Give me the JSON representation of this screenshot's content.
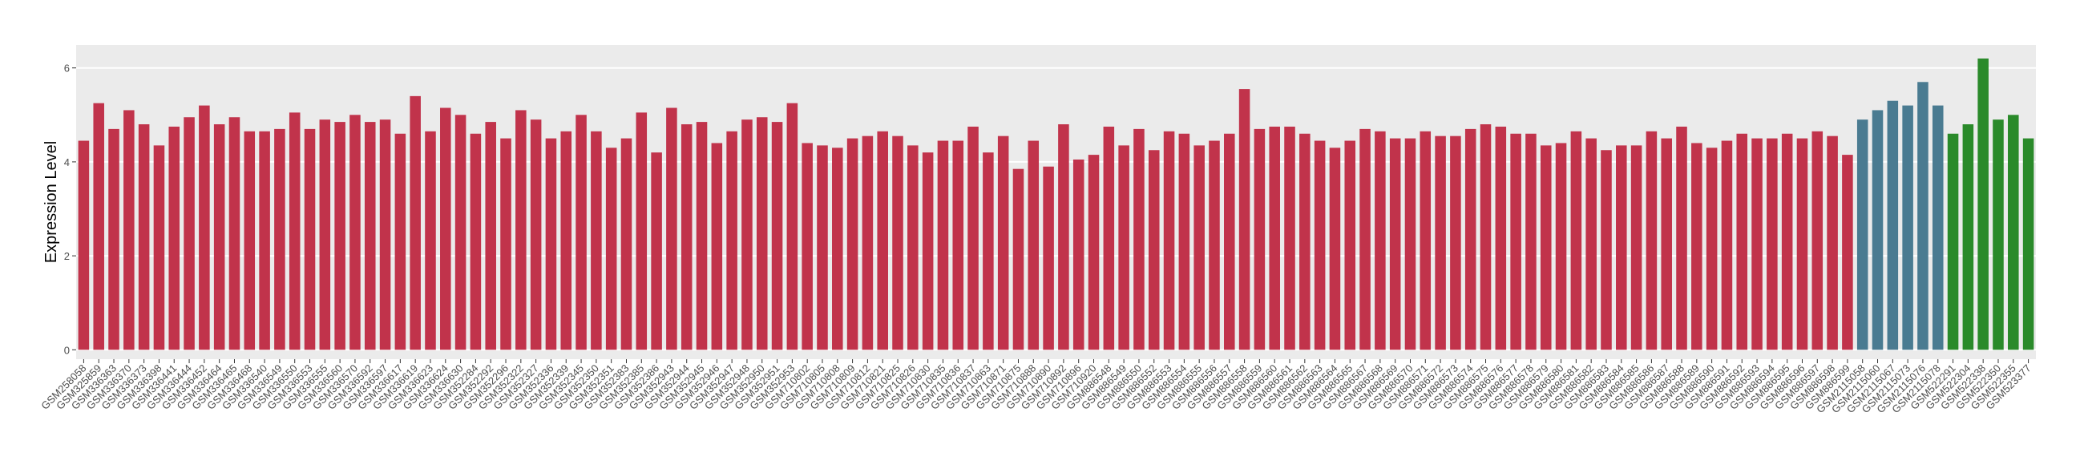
{
  "chart_data": {
    "type": "bar",
    "y_label": "Expression Level",
    "ylim": [
      -0.2,
      6.49
    ],
    "yticks": [
      0,
      2,
      4,
      6
    ],
    "grid": true,
    "series": [
      {
        "color": "#c1334b",
        "categories": [
          "GSM258058",
          "GSM325859",
          "GSM336363",
          "GSM336370",
          "GSM336373",
          "GSM336398",
          "GSM336441",
          "GSM336444",
          "GSM336452",
          "GSM336464",
          "GSM336465",
          "GSM336468",
          "GSM336540",
          "GSM336549",
          "GSM336550",
          "GSM336553",
          "GSM336555",
          "GSM336560",
          "GSM336570",
          "GSM336592",
          "GSM336597",
          "GSM336617",
          "GSM336619",
          "GSM336623",
          "GSM336624",
          "GSM336630",
          "GSM352284",
          "GSM352292",
          "GSM352296",
          "GSM352322",
          "GSM352327",
          "GSM352336",
          "GSM352339",
          "GSM352345",
          "GSM352350",
          "GSM352351",
          "GSM352383",
          "GSM352385",
          "GSM352386",
          "GSM352943",
          "GSM352944",
          "GSM352945",
          "GSM352946",
          "GSM352947",
          "GSM352948",
          "GSM352950",
          "GSM352951",
          "GSM352953",
          "GSM710802",
          "GSM710805",
          "GSM710808",
          "GSM710809",
          "GSM710812",
          "GSM710821",
          "GSM710825",
          "GSM710826",
          "GSM710830",
          "GSM710835",
          "GSM710836",
          "GSM710837",
          "GSM710863",
          "GSM710871",
          "GSM710875",
          "GSM710888",
          "GSM710890",
          "GSM710892",
          "GSM710896",
          "GSM710920",
          "GSM886548",
          "GSM886549",
          "GSM886550",
          "GSM886552",
          "GSM886553",
          "GSM886554",
          "GSM886555",
          "GSM886556",
          "GSM886557",
          "GSM886558",
          "GSM886559",
          "GSM886560",
          "GSM886561",
          "GSM886562",
          "GSM886563",
          "GSM886564",
          "GSM886565",
          "GSM886567",
          "GSM886568",
          "GSM886569",
          "GSM886570",
          "GSM886571",
          "GSM886572",
          "GSM886573",
          "GSM886574",
          "GSM886575",
          "GSM886576",
          "GSM886577",
          "GSM886578",
          "GSM886579",
          "GSM886580",
          "GSM886581",
          "GSM886582",
          "GSM886583",
          "GSM886584",
          "GSM886585",
          "GSM886586",
          "GSM886587",
          "GSM886588",
          "GSM886589",
          "GSM886590",
          "GSM886591",
          "GSM886592",
          "GSM886593",
          "GSM886594",
          "GSM886595",
          "GSM886596",
          "GSM886597",
          "GSM886598",
          "GSM886599"
        ],
        "values": [
          4.45,
          5.25,
          4.7,
          5.1,
          4.8,
          4.35,
          4.75,
          4.95,
          5.2,
          4.8,
          4.95,
          4.65,
          4.65,
          4.7,
          5.05,
          4.7,
          4.9,
          4.85,
          5.0,
          4.85,
          4.9,
          4.6,
          5.4,
          4.65,
          5.15,
          5.0,
          4.6,
          4.85,
          4.5,
          5.1,
          4.9,
          4.5,
          4.65,
          5.0,
          4.65,
          4.3,
          4.5,
          5.05,
          4.2,
          5.15,
          4.8,
          4.85,
          4.4,
          4.65,
          4.9,
          4.95,
          4.85,
          5.25,
          4.4,
          4.35,
          4.3,
          4.5,
          4.55,
          4.65,
          4.55,
          4.35,
          4.2,
          4.45,
          4.45,
          4.75,
          4.2,
          4.55,
          3.85,
          4.45,
          3.9,
          4.8,
          4.05,
          4.15,
          4.75,
          4.35,
          4.7,
          4.25,
          4.65,
          4.6,
          4.35,
          4.45,
          4.6,
          5.55,
          4.7,
          4.75,
          4.75,
          4.6,
          4.45,
          4.3,
          4.45,
          4.7,
          4.65,
          4.5,
          4.5,
          4.65,
          4.55,
          4.55,
          4.7,
          4.8,
          4.75,
          4.6,
          4.6,
          4.35,
          4.4,
          4.65,
          4.5,
          4.25,
          4.35,
          4.35,
          4.65,
          4.5,
          4.75,
          4.4,
          4.3,
          4.45,
          4.6,
          4.5,
          4.5,
          4.6,
          4.5,
          4.65,
          4.55,
          4.15
        ]
      },
      {
        "color": "#4a7b91",
        "categories": [
          "GSM2115058",
          "GSM2115060",
          "GSM2115067",
          "GSM2115073",
          "GSM2115076",
          "GSM2115078"
        ],
        "values": [
          4.9,
          5.1,
          5.3,
          5.2,
          5.7,
          5.2
        ]
      },
      {
        "color": "#2a8a2a",
        "categories": [
          "GSM522291",
          "GSM522304",
          "GSM522338",
          "GSM522350",
          "GSM522355",
          "GSM523377"
        ],
        "values": [
          4.6,
          4.8,
          6.2,
          4.9,
          5.0,
          4.5
        ]
      }
    ]
  }
}
